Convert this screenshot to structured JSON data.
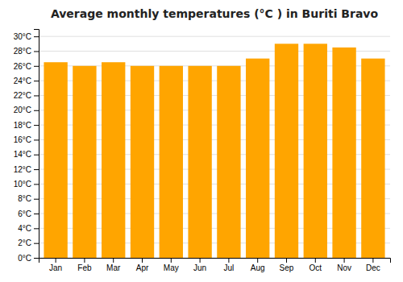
{
  "chart_data": {
    "type": "bar",
    "title": "Average monthly temperatures (°C ) in Buriti Bravo",
    "categories": [
      "Jan",
      "Feb",
      "Mar",
      "Apr",
      "May",
      "Jun",
      "Jul",
      "Aug",
      "Sep",
      "Oct",
      "Nov",
      "Dec"
    ],
    "values": [
      26.5,
      26.0,
      26.5,
      26.0,
      26.0,
      26.0,
      26.0,
      27.0,
      29.0,
      29.0,
      28.5,
      27.0
    ],
    "color": "#FFA500",
    "ylim": [
      0,
      31
    ],
    "yticks": [
      {
        "value": 0,
        "label": "0°C"
      },
      {
        "value": 2,
        "label": "2°C"
      },
      {
        "value": 4,
        "label": "4°C"
      },
      {
        "value": 6,
        "label": "6°C"
      },
      {
        "value": 8,
        "label": "8°C"
      },
      {
        "value": 10,
        "label": "10°C"
      },
      {
        "value": 12,
        "label": "12°C"
      },
      {
        "value": 14,
        "label": "14°C"
      },
      {
        "value": 16,
        "label": "16°C"
      },
      {
        "value": 18,
        "label": "18°C"
      },
      {
        "value": 20,
        "label": "20°C"
      },
      {
        "value": 22,
        "label": "22°C"
      },
      {
        "value": 24,
        "label": "24°C"
      },
      {
        "value": 26,
        "label": "26°C"
      },
      {
        "value": 28,
        "label": "28°C"
      },
      {
        "value": 30,
        "label": "30°C"
      }
    ],
    "grid": true
  }
}
